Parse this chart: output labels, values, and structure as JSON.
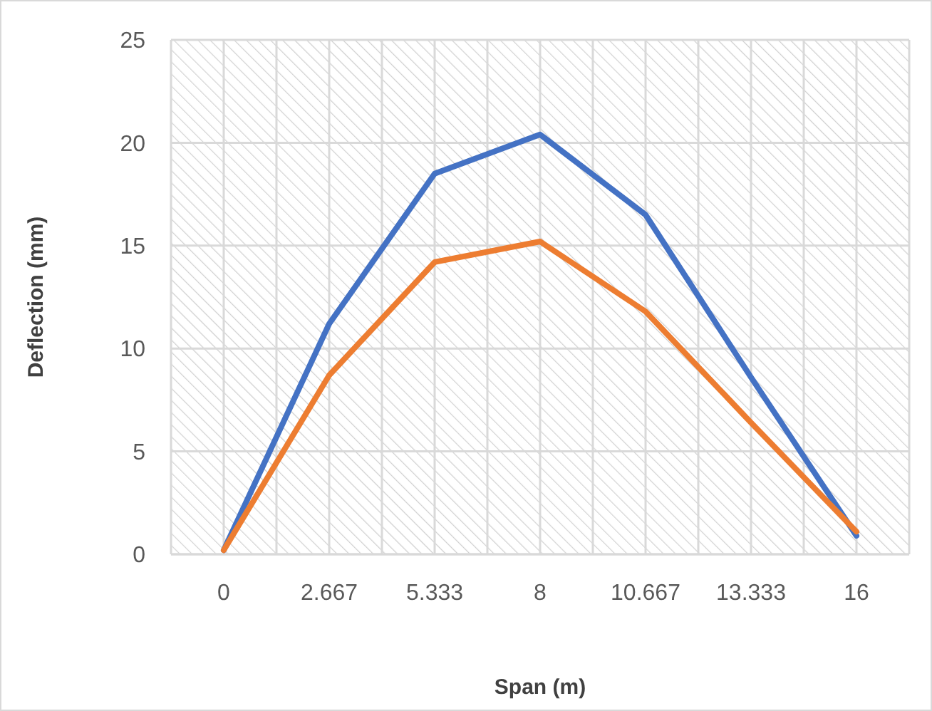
{
  "chart_data": {
    "type": "line",
    "xlabel": "Span (m)",
    "ylabel": "Deflection (mm)",
    "categories": [
      "0",
      "2.667",
      "5.333",
      "8",
      "10.667",
      "13.333",
      "16"
    ],
    "series": [
      {
        "color": "#4472c4",
        "values": [
          0.2,
          11.2,
          18.5,
          20.4,
          16.5,
          8.6,
          0.9
        ]
      },
      {
        "color": "#ed7d31",
        "values": [
          0.2,
          8.7,
          14.2,
          15.2,
          11.8,
          6.4,
          1.1
        ]
      }
    ],
    "ylim": [
      0,
      25
    ],
    "yticks": [
      0,
      5,
      10,
      15,
      20,
      25
    ],
    "grid": true,
    "marker": "none",
    "line_style": "solid"
  }
}
